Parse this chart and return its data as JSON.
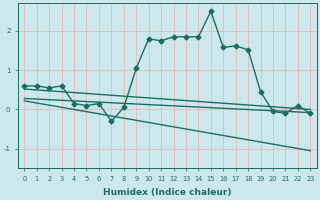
{
  "xlabel": "Humidex (Indice chaleur)",
  "background_color": "#cce8ec",
  "grid_color": "#e8b8b8",
  "line_color": "#1a6e60",
  "xlim": [
    -0.5,
    23.5
  ],
  "ylim": [
    -1.5,
    2.7
  ],
  "ytick_values": [
    -1,
    0,
    1,
    2
  ],
  "series1_x": [
    0,
    1,
    2,
    3,
    4,
    5,
    6,
    7,
    8,
    9,
    10,
    11,
    12,
    13,
    14,
    15,
    16,
    17,
    18,
    19,
    20,
    21,
    22,
    23
  ],
  "series1_y": [
    0.6,
    0.6,
    0.55,
    0.6,
    0.15,
    0.1,
    0.15,
    -0.3,
    0.05,
    1.05,
    1.8,
    1.75,
    1.85,
    1.85,
    1.85,
    2.5,
    1.58,
    1.62,
    1.52,
    0.45,
    -0.05,
    -0.1,
    0.1,
    -0.1
  ],
  "series2_x": [
    0,
    23
  ],
  "series2_y": [
    0.52,
    0.0
  ],
  "series3_x": [
    0,
    23
  ],
  "series3_y": [
    0.28,
    -0.08
  ],
  "series4_x": [
    0,
    23
  ],
  "series4_y": [
    0.22,
    -1.05
  ],
  "marker": "D",
  "marker_size": 2.5,
  "linewidth": 1.0
}
